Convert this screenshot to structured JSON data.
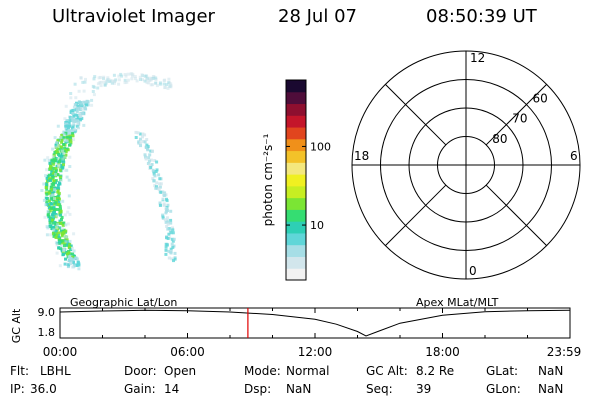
{
  "header": {
    "instrument": "Ultraviolet Imager",
    "date": "28 Jul 07",
    "time": "08:50:39 UT"
  },
  "colorbar": {
    "label": "photon cm⁻²s⁻¹",
    "ticks": [
      {
        "value": 10,
        "label": "10"
      },
      {
        "value": 100,
        "label": "100"
      }
    ],
    "range": [
      2,
      700
    ],
    "colors": [
      "#f2f2f2",
      "#d2e6ec",
      "#a6dee6",
      "#5fd6d8",
      "#2ecfb5",
      "#35dd72",
      "#7be534",
      "#c7ee22",
      "#f0f021",
      "#f4e87e",
      "#f3c229",
      "#f0901a",
      "#e1451e",
      "#c4152a",
      "#8e0f2f",
      "#4f0d3a",
      "#1a0930"
    ]
  },
  "polar": {
    "mlt_labels": [
      {
        "label": "12",
        "value": 12
      },
      {
        "label": "18",
        "value": 18
      },
      {
        "label": "6",
        "value": 6
      },
      {
        "label": "0",
        "value": 0
      }
    ],
    "lat_labels": [
      {
        "label": "80",
        "value": 80
      },
      {
        "label": "70",
        "value": 70
      },
      {
        "label": "60",
        "value": 60
      }
    ]
  },
  "timeline": {
    "left_label": "Geographic Lat/Lon",
    "right_label": "Apex MLat/MLT",
    "ylabel": "GC Alt",
    "yticks": [
      "9.0",
      "1.8"
    ],
    "xticks": [
      "00:00",
      "06:00",
      "12:00",
      "18:00",
      "23:59"
    ]
  },
  "chart_data": {
    "type": "line",
    "title": "",
    "xlabel": "",
    "ylabel": "GC Alt",
    "x_unit": "hours UT",
    "xlim": [
      0,
      24
    ],
    "ylim": [
      1.8,
      9.0
    ],
    "x": [
      0,
      2,
      4,
      6,
      8,
      10,
      12,
      13,
      14,
      14.4,
      15,
      16,
      18,
      20,
      22,
      24
    ],
    "y": [
      8.7,
      9.0,
      9.2,
      9.1,
      8.7,
      8.0,
      6.6,
      5.2,
      3.1,
      1.8,
      3.2,
      5.5,
      7.8,
      8.8,
      9.1,
      9.2
    ],
    "marker": {
      "time": "08:50:39",
      "x": 8.844,
      "color": "#e00000"
    }
  },
  "info": [
    {
      "key": "Flt:",
      "value": "LBHL"
    },
    {
      "key": "Door:",
      "value": "Open"
    },
    {
      "key": "Mode:",
      "value": "Normal"
    },
    {
      "key": "GC Alt:",
      "value": "8.2 Re"
    },
    {
      "key": "GLat:",
      "value": "NaN"
    },
    {
      "key": "IP:",
      "value": "36.0"
    },
    {
      "key": "Gain:",
      "value": "14"
    },
    {
      "key": "Dsp:",
      "value": "NaN"
    },
    {
      "key": "Seq:",
      "value": "39"
    },
    {
      "key": "GLon:",
      "value": "NaN"
    }
  ],
  "colors": {
    "fg": "#000000",
    "marker": "#e00000"
  }
}
